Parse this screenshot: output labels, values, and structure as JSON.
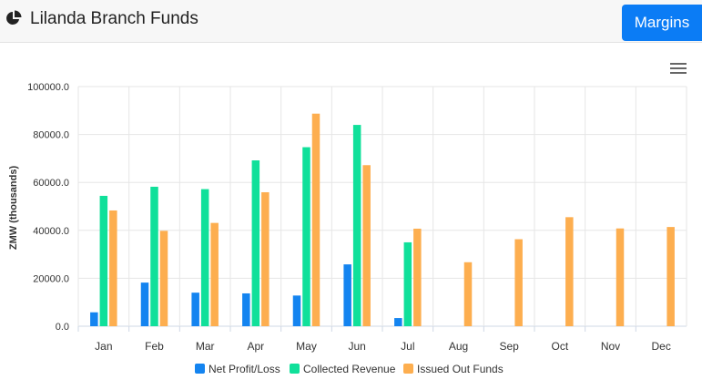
{
  "header": {
    "title": "Lilanda Branch Funds",
    "icon": "pie-chart-icon",
    "margins_button": "Margins",
    "accent_color": "#0b7cf5"
  },
  "chart_menu_icon": "hamburger-menu-icon",
  "chart_data": {
    "type": "bar",
    "categories": [
      "Jan",
      "Feb",
      "Mar",
      "Apr",
      "May",
      "Jun",
      "Jul",
      "Aug",
      "Sep",
      "Oct",
      "Nov",
      "Dec"
    ],
    "series": [
      {
        "name": "Net Profit/Loss",
        "color": "#1484f0",
        "values": [
          5800,
          18200,
          14000,
          13700,
          12800,
          25800,
          3400,
          null,
          null,
          null,
          null,
          null
        ]
      },
      {
        "name": "Collected Revenue",
        "color": "#10e09a",
        "values": [
          54400,
          58200,
          57200,
          69200,
          74700,
          84000,
          35000,
          null,
          null,
          null,
          null,
          null
        ]
      },
      {
        "name": "Issued Out Funds",
        "color": "#fdae4f",
        "values": [
          48300,
          39800,
          43100,
          55900,
          88700,
          67200,
          40700,
          26700,
          36300,
          45500,
          40800,
          41400
        ]
      }
    ],
    "title": "",
    "xlabel": "",
    "ylabel": "ZMW (thousands)",
    "ylim": [
      0,
      100000
    ],
    "yticks": [
      "0.0",
      "20000.0",
      "40000.0",
      "60000.0",
      "80000.0",
      "100000.0"
    ],
    "grid": true,
    "legend_position": "bottom-center"
  }
}
